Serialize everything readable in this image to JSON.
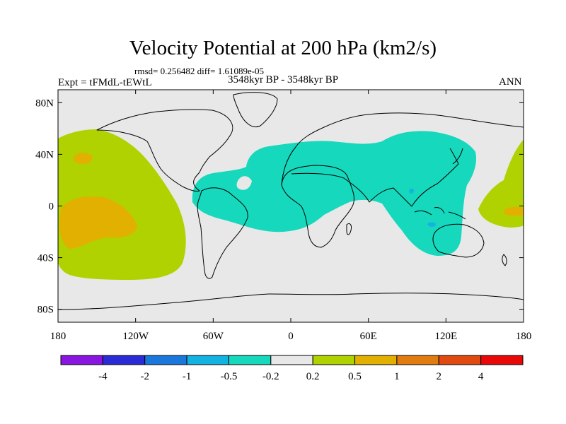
{
  "chart_data": {
    "type": "heatmap",
    "title": "Velocity Potential at 200 hPa (km2/s)",
    "stats_text": "rmsd= 0.256482 diff= 1.61089e-05",
    "left_label": "Expt = tFMdL-tEWtL",
    "center_label": "3548kyr BP - 3548kyr BP",
    "right_label": "ANN",
    "x_ticks": [
      "180",
      "120W",
      "60W",
      "0",
      "60E",
      "120E",
      "180"
    ],
    "x_tick_values": [
      -180,
      -120,
      -60,
      0,
      60,
      120,
      180
    ],
    "y_ticks": [
      "80N",
      "40N",
      "0",
      "40S",
      "80S"
    ],
    "y_tick_values": [
      80,
      40,
      0,
      -40,
      -80
    ],
    "xlim": [
      -180,
      180
    ],
    "ylim": [
      -90,
      90
    ],
    "colorbar": {
      "levels": [
        "-4",
        "-2",
        "-1",
        "-0.5",
        "-0.2",
        "0.2",
        "0.5",
        "1",
        "2",
        "4"
      ],
      "colors": [
        "#8a14e0",
        "#2b2bd6",
        "#1a78dc",
        "#13b2e2",
        "#15d8bc",
        "#e8e8e8",
        "#b0d200",
        "#e2b000",
        "#e07c10",
        "#e04a10",
        "#e80808"
      ]
    },
    "anomaly_regions": [
      {
        "name": "Asia-Indian Ocean-Atlantic negative anomaly",
        "category": "-0.5 to -0.2",
        "color": "#15d8bc"
      },
      {
        "name": "Central-eastern Pacific positive anomaly",
        "category": "0.2 to 0.5",
        "color": "#b0d200"
      },
      {
        "name": "Southeast Pacific core",
        "category": "0.5 to 1",
        "color": "#e2b000"
      },
      {
        "name": "North Pacific core",
        "category": "0.5 to 1",
        "color": "#e2b000"
      },
      {
        "name": "Western Pacific positive anomaly",
        "category": "0.2 to 0.5",
        "color": "#b0d200"
      },
      {
        "name": "Western Pacific core",
        "category": "0.5 to 1",
        "color": "#e2b000"
      },
      {
        "name": "Maritime Continent minimum",
        "category": "-1 to -0.5",
        "color": "#13b2e2"
      },
      {
        "name": "South Asia minimum",
        "category": "-1 to -0.5",
        "color": "#13b2e2"
      }
    ]
  }
}
